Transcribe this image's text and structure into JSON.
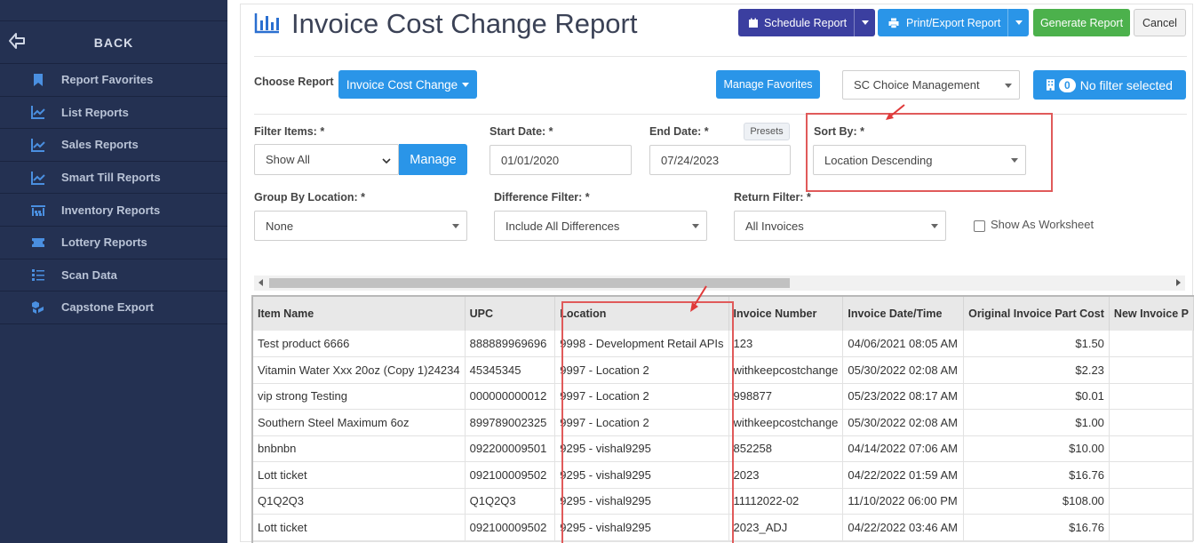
{
  "sidebar": {
    "back_label": "BACK",
    "items": [
      {
        "label": "Report Favorites",
        "icon": "bookmark-icon"
      },
      {
        "label": "List Reports",
        "icon": "chart-line-icon"
      },
      {
        "label": "Sales Reports",
        "icon": "chart-line-icon"
      },
      {
        "label": "Smart Till Reports",
        "icon": "chart-line-icon"
      },
      {
        "label": "Inventory Reports",
        "icon": "warehouse-icon"
      },
      {
        "label": "Lottery Reports",
        "icon": "ticket-icon"
      },
      {
        "label": "Scan Data",
        "icon": "list-icon"
      },
      {
        "label": "Capstone Export",
        "icon": "cubes-icon"
      }
    ]
  },
  "header": {
    "title": "Invoice Cost Change Report",
    "schedule_label": "Schedule Report",
    "print_label": "Print/Export Report",
    "generate_label": "Generate Report",
    "cancel_label": "Cancel"
  },
  "choose": {
    "label": "Choose Report",
    "report_button": "Invoice Cost Change",
    "manage_favorites": "Manage Favorites",
    "company": "SC Choice Management",
    "filter_count": "0",
    "filter_label": "No filter selected"
  },
  "filters": {
    "filter_items_label": "Filter Items: *",
    "filter_items_value": "Show All",
    "manage_button": "Manage",
    "start_date_label": "Start Date: *",
    "start_date_value": "01/01/2020",
    "end_date_label": "End Date: *",
    "end_date_value": "07/24/2023",
    "presets_label": "Presets",
    "sort_by_label": "Sort By: *",
    "sort_by_value": "Location Descending",
    "group_by_label": "Group By Location: *",
    "group_by_value": "None",
    "difference_label": "Difference Filter: *",
    "difference_value": "Include All Differences",
    "return_label": "Return Filter: *",
    "return_value": "All Invoices",
    "worksheet_label": "Show As Worksheet"
  },
  "table": {
    "columns": [
      "Item Name",
      "UPC",
      "Location",
      "Invoice Number",
      "Invoice Date/Time",
      "Original Invoice Part Cost",
      "New Invoice P"
    ],
    "rows": [
      [
        "Test product 6666",
        "888889969696",
        "9998 - Development Retail APIs",
        "123",
        "04/06/2021 08:05 AM",
        "$1.50",
        ""
      ],
      [
        "Vitamin Water Xxx 20oz (Copy 1)24234",
        "45345345",
        "9997 - Location 2",
        "withkeepcostchange",
        "05/30/2022 02:08 AM",
        "$2.23",
        ""
      ],
      [
        "vip strong Testing",
        "000000000012",
        "9997 - Location 2",
        "998877",
        "05/23/2022 08:17 AM",
        "$0.01",
        ""
      ],
      [
        "Southern Steel Maximum 6oz",
        "899789002325",
        "9997 - Location 2",
        "withkeepcostchange",
        "05/30/2022 02:08 AM",
        "$1.00",
        ""
      ],
      [
        "bnbnbn",
        "092200009501",
        "9295 - vishal9295",
        "852258",
        "04/14/2022 07:06 AM",
        "$10.00",
        ""
      ],
      [
        "Lott ticket",
        "092100009502",
        "9295 - vishal9295",
        "2023",
        "04/22/2022 01:59 AM",
        "$16.76",
        ""
      ],
      [
        "Q1Q2Q3",
        "Q1Q2Q3",
        "9295 - vishal9295",
        "11112022-02",
        "11/10/2022 06:00 PM",
        "$108.00",
        ""
      ],
      [
        "Lott ticket",
        "092100009502",
        "9295 - vishal9295",
        "2023_ADJ",
        "04/22/2022 03:46 AM",
        "$16.76",
        ""
      ]
    ]
  }
}
